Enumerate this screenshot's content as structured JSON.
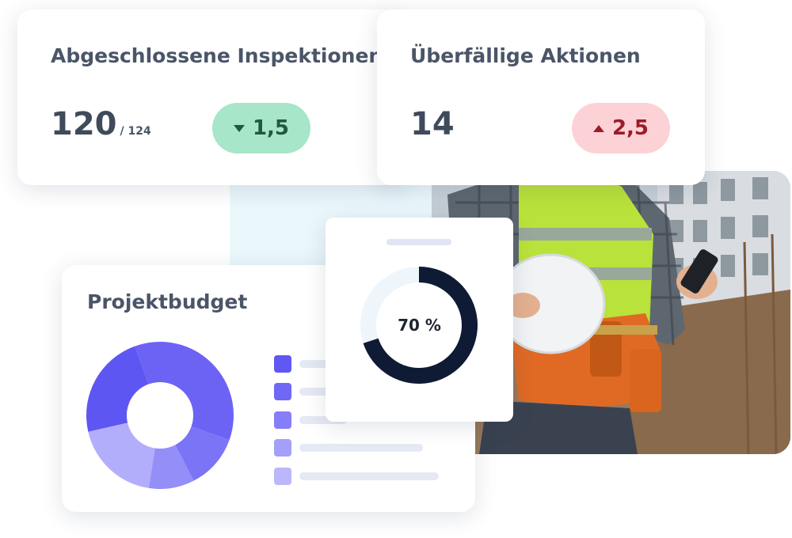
{
  "kpis": {
    "completed_inspections": {
      "title": "Abgeschlossene Inspektionen",
      "value": "120",
      "total": "/ 124",
      "change": "1,5",
      "trend": "down",
      "color": "#a7e6c8"
    },
    "overdue_actions": {
      "title": "Überfällige Aktionen",
      "value": "14",
      "change": "2,5",
      "trend": "up",
      "color": "#fcd2d6"
    }
  },
  "budget": {
    "title": "Projektbudget",
    "donut_segments": [
      {
        "share": 0.36,
        "color": "#6c63f5"
      },
      {
        "share": 0.12,
        "color": "#7b74f7"
      },
      {
        "share": 0.1,
        "color": "#948ef9"
      },
      {
        "share": 0.19,
        "color": "#b2aefb"
      },
      {
        "share": 0.23,
        "color": "#5e56f2"
      }
    ],
    "legend_colors": [
      "#6158f4",
      "#6f68f6",
      "#857ef8",
      "#a39ffa",
      "#bab7fb"
    ]
  },
  "gauge": {
    "label": "70 %",
    "value": 0.7,
    "color": "#0f1b35",
    "track_color": "#eef6fb"
  }
}
